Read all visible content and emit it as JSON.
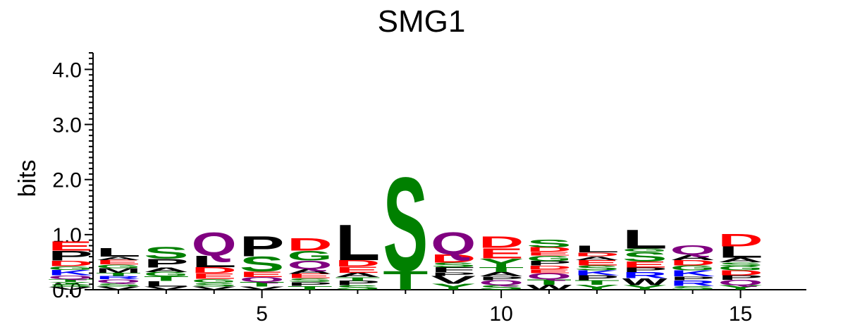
{
  "chart_data": {
    "type": "sequence-logo",
    "title": "SMG1",
    "ylabel": "bits",
    "ylim": [
      0,
      4.3
    ],
    "yticks": [
      "0.0",
      "1.0",
      "2.0",
      "3.0",
      "4.0"
    ],
    "xticks": [
      5,
      10,
      15
    ],
    "colors": {
      "hydrophobic": "#000000",
      "polar": "#008000",
      "acidic": "#ff0000",
      "basic": "#0000ff",
      "amide": "#800080"
    },
    "residue_color_class": {
      "A": "hydrophobic",
      "V": "hydrophobic",
      "L": "hydrophobic",
      "I": "hydrophobic",
      "P": "hydrophobic",
      "W": "hydrophobic",
      "F": "hydrophobic",
      "M": "hydrophobic",
      "S": "polar",
      "G": "polar",
      "T": "polar",
      "Y": "polar",
      "C": "polar",
      "D": "acidic",
      "E": "acidic",
      "K": "basic",
      "R": "basic",
      "H": "basic",
      "Q": "amide",
      "N": "amide"
    },
    "positions": [
      {
        "pos": 1,
        "letters": [
          [
            "V",
            0.05
          ],
          [
            "S",
            0.05
          ],
          [
            "Y",
            0.04
          ],
          [
            "T",
            0.05
          ],
          [
            "Q",
            0.07
          ],
          [
            "K",
            0.1
          ],
          [
            "G",
            0.07
          ],
          [
            "D",
            0.1
          ],
          [
            "P",
            0.18
          ],
          [
            "E",
            0.17
          ]
        ]
      },
      {
        "pos": 2,
        "letters": [
          [
            "V",
            0.06
          ],
          [
            "S",
            0.06
          ],
          [
            "Q",
            0.07
          ],
          [
            "R",
            0.06
          ],
          [
            "T",
            0.06
          ],
          [
            "M",
            0.08
          ],
          [
            "G",
            0.07
          ],
          [
            "E",
            0.08
          ],
          [
            "A",
            0.06
          ],
          [
            "L",
            0.16
          ]
        ]
      },
      {
        "pos": 3,
        "letters": [
          [
            "V",
            0.06
          ],
          [
            "L",
            0.1
          ],
          [
            "T",
            0.08
          ],
          [
            "G",
            0.08
          ],
          [
            "A",
            0.08
          ],
          [
            "P",
            0.16
          ],
          [
            "S",
            0.22
          ]
        ]
      },
      {
        "pos": 4,
        "letters": [
          [
            "V",
            0.06
          ],
          [
            "S",
            0.07
          ],
          [
            "G",
            0.07
          ],
          [
            "E",
            0.1
          ],
          [
            "D",
            0.11
          ],
          [
            "L",
            0.21
          ],
          [
            "Q",
            0.43
          ]
        ]
      },
      {
        "pos": 5,
        "letters": [
          [
            "V",
            0.06
          ],
          [
            "T",
            0.08
          ],
          [
            "Q",
            0.09
          ],
          [
            "E",
            0.1
          ],
          [
            "S",
            0.28
          ],
          [
            "P",
            0.37
          ]
        ]
      },
      {
        "pos": 6,
        "letters": [
          [
            "T",
            0.07
          ],
          [
            "P",
            0.07
          ],
          [
            "S",
            0.07
          ],
          [
            "E",
            0.08
          ],
          [
            "A",
            0.09
          ],
          [
            "Q",
            0.15
          ],
          [
            "G",
            0.18
          ],
          [
            "D",
            0.23
          ]
        ]
      },
      {
        "pos": 7,
        "letters": [
          [
            "S",
            0.08
          ],
          [
            "P",
            0.08
          ],
          [
            "T",
            0.07
          ],
          [
            "A",
            0.08
          ],
          [
            "E",
            0.11
          ],
          [
            "D",
            0.12
          ],
          [
            "L",
            0.66
          ]
        ]
      },
      {
        "pos": 8,
        "letters": [
          [
            "T",
            0.35
          ],
          [
            "S",
            1.74
          ]
        ]
      },
      {
        "pos": 9,
        "letters": [
          [
            "Y",
            0.11
          ],
          [
            "V",
            0.14
          ],
          [
            "P",
            0.07
          ],
          [
            "F",
            0.09
          ],
          [
            "S",
            0.08
          ],
          [
            "D",
            0.15
          ],
          [
            "Q",
            0.42
          ]
        ]
      },
      {
        "pos": 10,
        "letters": [
          [
            "S",
            0.08
          ],
          [
            "Q",
            0.09
          ],
          [
            "P",
            0.07
          ],
          [
            "A",
            0.08
          ],
          [
            "T",
            0.09
          ],
          [
            "Y",
            0.16
          ],
          [
            "E",
            0.19
          ],
          [
            "D",
            0.21
          ]
        ]
      },
      {
        "pos": 11,
        "letters": [
          [
            "W",
            0.09
          ],
          [
            "T",
            0.1
          ],
          [
            "Q",
            0.11
          ],
          [
            "E",
            0.07
          ],
          [
            "D",
            0.07
          ],
          [
            "P",
            0.08
          ],
          [
            "G",
            0.1
          ],
          [
            "E",
            0.07
          ],
          [
            "D",
            0.08
          ],
          [
            "S",
            0.14
          ]
        ]
      },
      {
        "pos": 12,
        "letters": [
          [
            "Y",
            0.09
          ],
          [
            "T",
            0.08
          ],
          [
            "P",
            0.09
          ],
          [
            "K",
            0.09
          ],
          [
            "S",
            0.09
          ],
          [
            "E",
            0.1
          ],
          [
            "A",
            0.07
          ],
          [
            "D",
            0.07
          ],
          [
            "L",
            0.13
          ]
        ]
      },
      {
        "pos": 13,
        "letters": [
          [
            "Y",
            0.08
          ],
          [
            "W",
            0.13
          ],
          [
            "R",
            0.11
          ],
          [
            "P",
            0.08
          ],
          [
            "E",
            0.11
          ],
          [
            "S",
            0.18
          ],
          [
            "G",
            0.06
          ],
          [
            "L",
            0.35
          ]
        ]
      },
      {
        "pos": 14,
        "letters": [
          [
            "S",
            0.07
          ],
          [
            "R",
            0.1
          ],
          [
            "P",
            0.07
          ],
          [
            "K",
            0.11
          ],
          [
            "G",
            0.09
          ],
          [
            "D",
            0.1
          ],
          [
            "A",
            0.1
          ],
          [
            "Q",
            0.17
          ]
        ]
      },
      {
        "pos": 15,
        "letters": [
          [
            "Y",
            0.08
          ],
          [
            "Q",
            0.1
          ],
          [
            "P",
            0.08
          ],
          [
            "D",
            0.09
          ],
          [
            "G",
            0.08
          ],
          [
            "S",
            0.07
          ],
          [
            "A",
            0.08
          ],
          [
            "L",
            0.21
          ],
          [
            "D",
            0.23
          ]
        ]
      }
    ]
  }
}
